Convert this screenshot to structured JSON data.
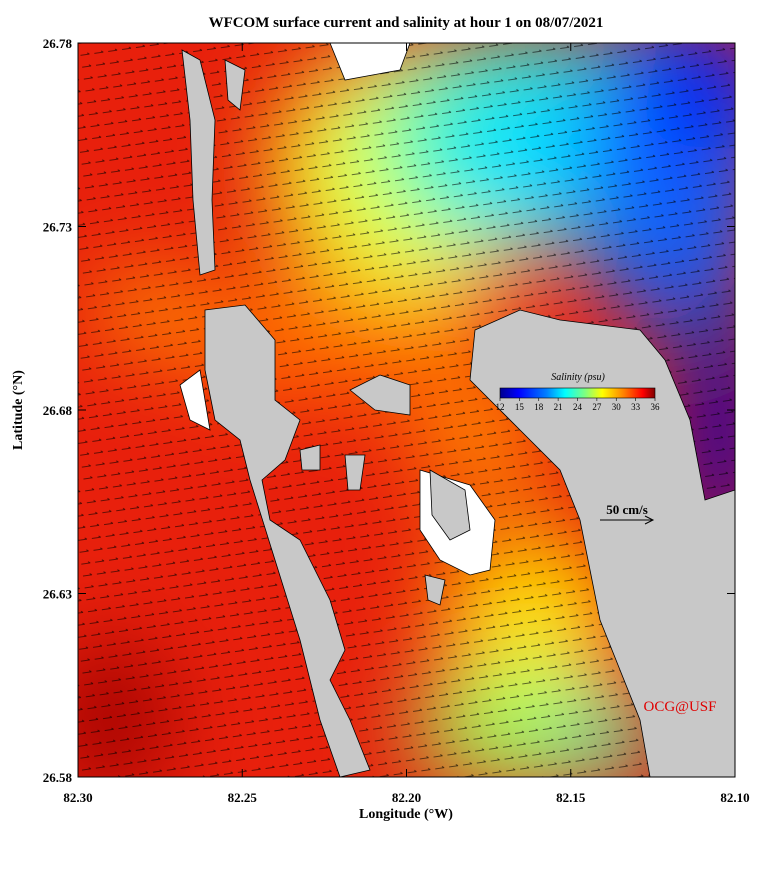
{
  "title": "WFCOM surface current and salinity at hour 1 on 08/07/2021",
  "x_axis": {
    "label": "Longitude (°W)",
    "lim": [
      82.3,
      82.1
    ],
    "ticks": [
      {
        "value": 82.3,
        "label": "82.30"
      },
      82.25,
      {
        "value": 82.2,
        "label": "82.20"
      },
      82.15,
      {
        "value": 82.1,
        "label": "82.10"
      }
    ]
  },
  "y_axis": {
    "label": "Latitude (°N)",
    "lim": [
      26.58,
      26.78
    ],
    "ticks": [
      26.58,
      26.63,
      26.68,
      26.73,
      26.78
    ]
  },
  "colorbar": {
    "title": "Salinity (psu)",
    "lim": [
      12,
      36
    ],
    "ticks": [
      12,
      15,
      18,
      21,
      24,
      27,
      30,
      33,
      36
    ]
  },
  "scale_arrow": {
    "label": "50 cm/s"
  },
  "credit": "OCG@USF"
}
